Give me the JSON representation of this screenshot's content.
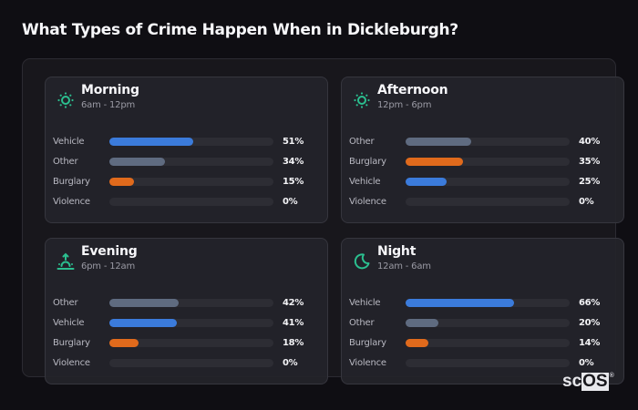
{
  "title": "What Types of Crime Happen When in Dickleburgh?",
  "colors": {
    "Vehicle": "#3b7bdb",
    "Other": "#5f6b80",
    "Burglary": "#e06a1c",
    "Violence": "#8a8a94",
    "icon_accent": "#2bbf8f"
  },
  "cards": [
    {
      "period": "Morning",
      "range": "6am - 12pm",
      "icon": "sun-icon",
      "rows": [
        {
          "label": "Vehicle",
          "value": 51,
          "pct": "51%"
        },
        {
          "label": "Other",
          "value": 34,
          "pct": "34%"
        },
        {
          "label": "Burglary",
          "value": 15,
          "pct": "15%"
        },
        {
          "label": "Violence",
          "value": 0,
          "pct": "0%"
        }
      ]
    },
    {
      "period": "Afternoon",
      "range": "12pm - 6pm",
      "icon": "sun-icon",
      "rows": [
        {
          "label": "Other",
          "value": 40,
          "pct": "40%"
        },
        {
          "label": "Burglary",
          "value": 35,
          "pct": "35%"
        },
        {
          "label": "Vehicle",
          "value": 25,
          "pct": "25%"
        },
        {
          "label": "Violence",
          "value": 0,
          "pct": "0%"
        }
      ]
    },
    {
      "period": "Evening",
      "range": "6pm - 12am",
      "icon": "sunset-icon",
      "rows": [
        {
          "label": "Other",
          "value": 42,
          "pct": "42%"
        },
        {
          "label": "Vehicle",
          "value": 41,
          "pct": "41%"
        },
        {
          "label": "Burglary",
          "value": 18,
          "pct": "18%"
        },
        {
          "label": "Violence",
          "value": 0,
          "pct": "0%"
        }
      ]
    },
    {
      "period": "Night",
      "range": "12am - 6am",
      "icon": "moon-icon",
      "rows": [
        {
          "label": "Vehicle",
          "value": 66,
          "pct": "66%"
        },
        {
          "label": "Other",
          "value": 20,
          "pct": "20%"
        },
        {
          "label": "Burglary",
          "value": 14,
          "pct": "14%"
        },
        {
          "label": "Violence",
          "value": 0,
          "pct": "0%"
        }
      ]
    }
  ],
  "logo": {
    "sc": "sc",
    "os": "OS",
    "reg": "®"
  },
  "chart_data": {
    "type": "bar",
    "orientation": "horizontal",
    "title": "What Types of Crime Happen When in Dickleburgh?",
    "facets": [
      "Morning (6am - 12pm)",
      "Afternoon (12pm - 6pm)",
      "Evening (6pm - 12am)",
      "Night (12am - 6am)"
    ],
    "categories": [
      "Vehicle",
      "Other",
      "Burglary",
      "Violence"
    ],
    "series": [
      {
        "name": "Morning",
        "values": [
          51,
          34,
          15,
          0
        ]
      },
      {
        "name": "Afternoon",
        "values": [
          25,
          40,
          35,
          0
        ]
      },
      {
        "name": "Evening",
        "values": [
          41,
          42,
          18,
          0
        ]
      },
      {
        "name": "Night",
        "values": [
          66,
          20,
          14,
          0
        ]
      }
    ],
    "unit": "%",
    "xlim": [
      0,
      100
    ],
    "grid": false,
    "legend": "none"
  }
}
